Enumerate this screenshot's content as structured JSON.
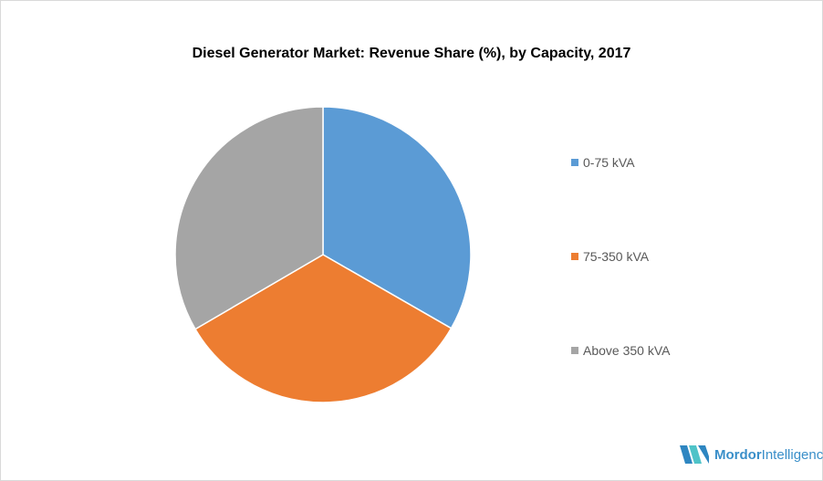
{
  "chart_data": {
    "type": "pie",
    "title": "Diesel Generator Market: Revenue Share (%), by Capacity, 2017",
    "categories": [
      "0-75 kVA",
      "75-350 kVA",
      "Above 350 kVA"
    ],
    "values": [
      33.3,
      33.3,
      33.4
    ],
    "colors": [
      "#5b9bd5",
      "#ed7d31",
      "#a5a5a5"
    ],
    "legend_placement": "right",
    "start_angle": "top, clockwise"
  },
  "branding": {
    "logo_text_bold": "Mordor",
    "logo_text_light": "Intelligence"
  }
}
